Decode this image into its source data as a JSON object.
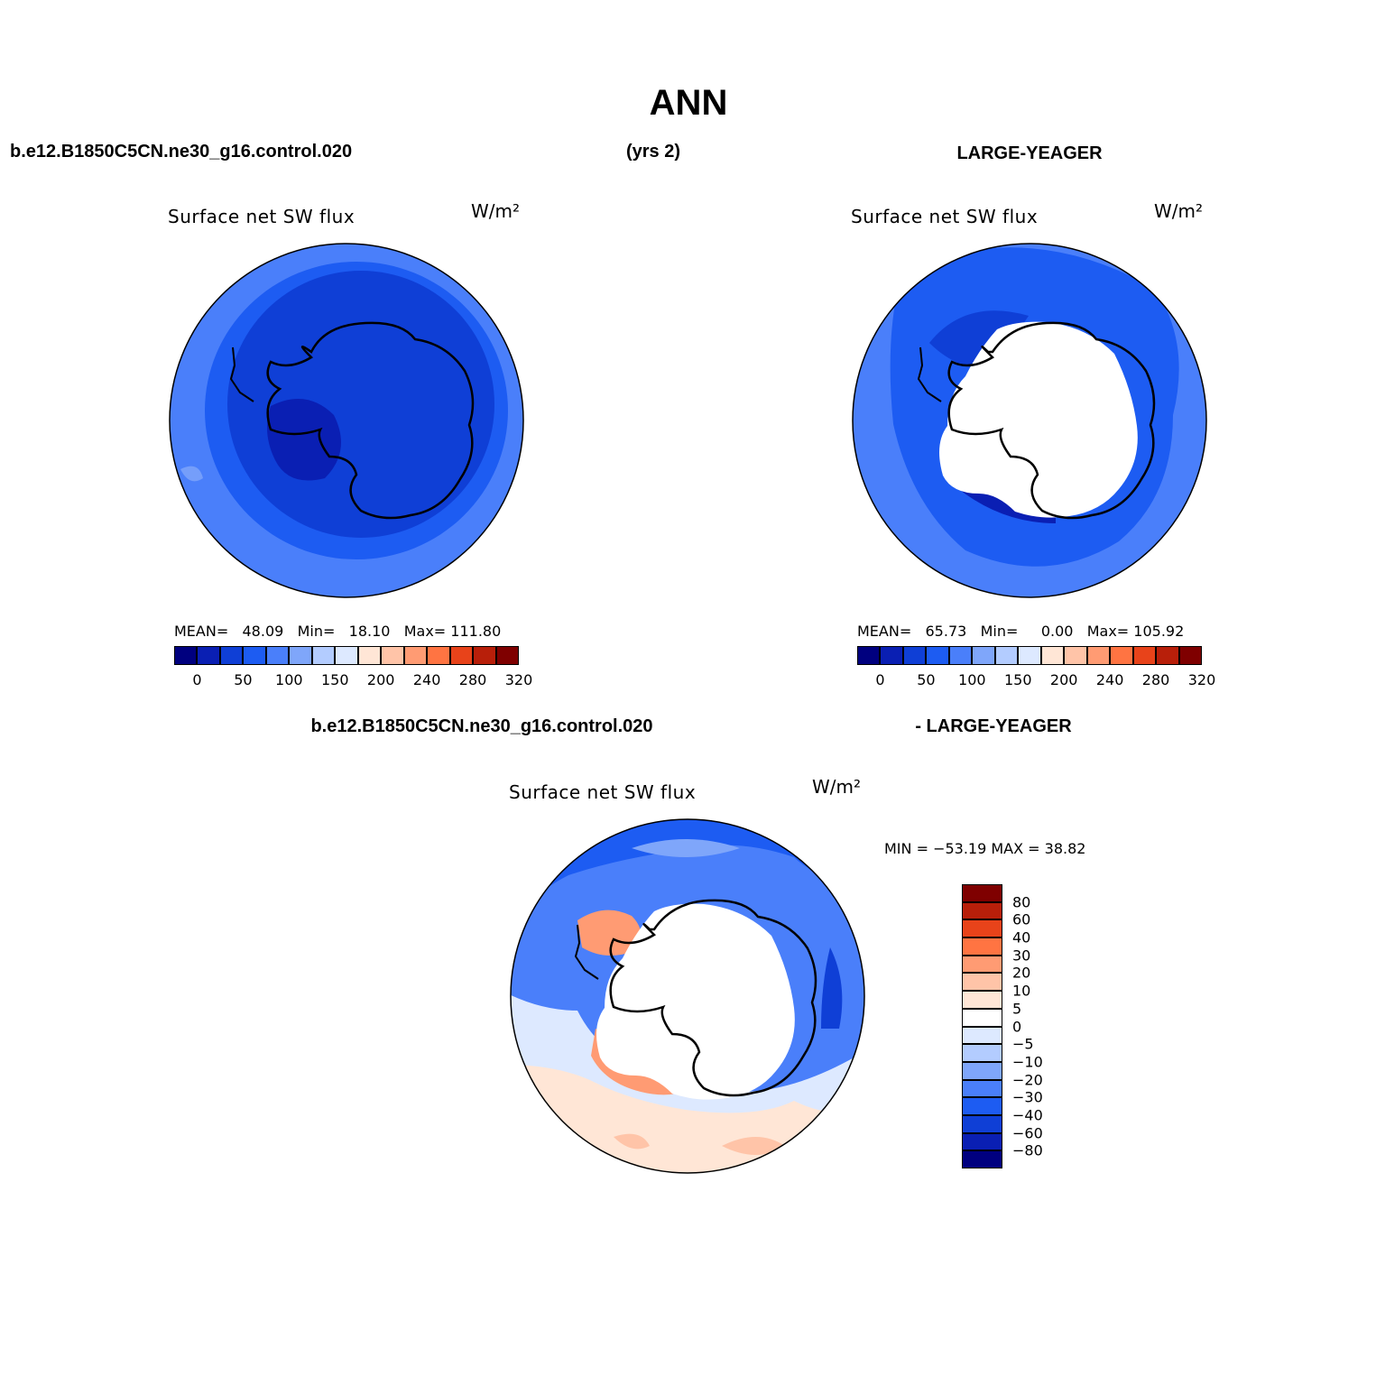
{
  "figure": {
    "title": "ANN",
    "case_name": "b.e12.B1850C5CN.ne30_g16.control.020",
    "years": "(yrs 2)",
    "obs_name": "LARGE-YEAGER",
    "diff_case_name": "b.e12.B1850C5CN.ne30_g16.control.020",
    "diff_obs_name": "- LARGE-YEAGER"
  },
  "panels": [
    {
      "id": "model",
      "title": "Surface net SW flux",
      "units": "W/m²",
      "stats": {
        "mean_label": "MEAN=",
        "mean": "48.09",
        "min_label": "Min=",
        "min": "18.10",
        "max_label": "Max=",
        "max": "111.80"
      },
      "colorbar": {
        "colors": [
          "#00007f",
          "#0a1fb3",
          "#0f3fd6",
          "#1d5cf2",
          "#4a7ffa",
          "#7fa6fa",
          "#b3ccff",
          "#dde9ff",
          "#ffe6d6",
          "#ffc4a8",
          "#ff9b73",
          "#ff7442",
          "#e8431a",
          "#b81f0a",
          "#7f0000"
        ],
        "labels": [
          "0",
          "50",
          "100",
          "150",
          "200",
          "240",
          "280",
          "320"
        ]
      }
    },
    {
      "id": "obs",
      "title": "Surface net SW flux",
      "units": "W/m²",
      "stats": {
        "mean_label": "MEAN=",
        "mean": "65.73",
        "min_label": "Min=",
        "min": "0.00",
        "max_label": "Max=",
        "max": "105.92"
      },
      "colorbar": {
        "colors": [
          "#00007f",
          "#0a1fb3",
          "#0f3fd6",
          "#1d5cf2",
          "#4a7ffa",
          "#7fa6fa",
          "#b3ccff",
          "#dde9ff",
          "#ffe6d6",
          "#ffc4a8",
          "#ff9b73",
          "#ff7442",
          "#e8431a",
          "#b81f0a",
          "#7f0000"
        ],
        "labels": [
          "0",
          "50",
          "100",
          "150",
          "200",
          "240",
          "280",
          "320"
        ]
      }
    },
    {
      "id": "diff",
      "title": "Surface net SW flux",
      "units": "W/m²",
      "stats_text": "MIN = −53.19  MAX =   38.82",
      "colorbar": {
        "colors": [
          "#7f0000",
          "#b81f0a",
          "#e8431a",
          "#ff7442",
          "#ff9b73",
          "#ffc4a8",
          "#ffe6d6",
          "#dde9ff",
          "#b3ccff",
          "#7fa6fa",
          "#4a7ffa",
          "#1d5cf2",
          "#0f3fd6",
          "#0a1fb3",
          "#00007f"
        ],
        "labels": [
          "80",
          "60",
          "40",
          "30",
          "20",
          "10",
          "5",
          "0",
          "−5",
          "−10",
          "−20",
          "−30",
          "−40",
          "−60",
          "−80"
        ]
      }
    }
  ]
}
